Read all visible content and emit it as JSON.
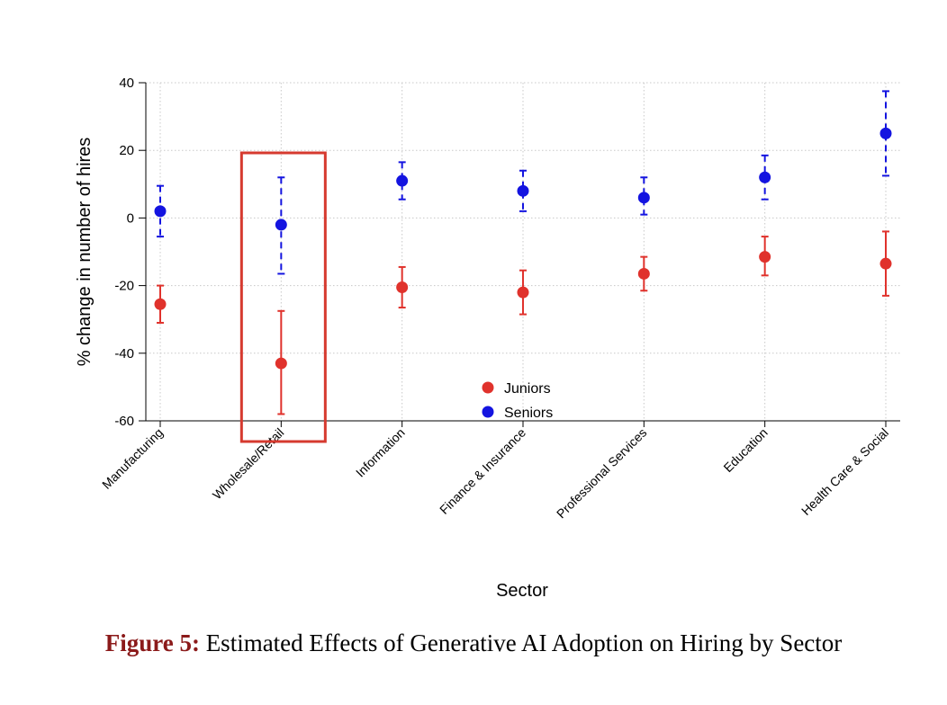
{
  "chart_data": {
    "type": "scatter",
    "subtype": "point-estimates-with-confidence-intervals",
    "xlabel": "Sector",
    "ylabel": "% change in number of hires",
    "ylim": [
      -60,
      40
    ],
    "yticks": [
      40,
      20,
      0,
      -20,
      -40,
      -60
    ],
    "categories": [
      "Manufacturing",
      "Wholesale/Retail",
      "Information",
      "Finance & Insurance",
      "Professional Services",
      "Education",
      "Health Care & Social"
    ],
    "series": [
      {
        "name": "Juniors",
        "color": "#e0322c",
        "values": [
          -25.5,
          -43,
          -20.5,
          -22,
          -16.5,
          -11.5,
          -13.5
        ],
        "ci_low": [
          -31,
          -58,
          -26.5,
          -28.5,
          -21.5,
          -17,
          -23
        ],
        "ci_high": [
          -20,
          -27.5,
          -14.5,
          -15.5,
          -11.5,
          -5.5,
          -4
        ]
      },
      {
        "name": "Seniors",
        "color": "#1414e0",
        "values": [
          2,
          -2,
          11,
          8,
          6,
          12,
          25
        ],
        "ci_low": [
          -5.5,
          -16.5,
          5.5,
          2,
          1,
          5.5,
          12.5
        ],
        "ci_high": [
          9.5,
          12,
          16.5,
          14,
          12,
          18.5,
          37.5
        ]
      }
    ],
    "grid": true,
    "legend_position": "center-bottom",
    "highlight_category": "Wholesale/Retail",
    "highlight_color": "#d63a2f"
  },
  "caption": {
    "label": "Figure 5:",
    "text": " Estimated Effects of Generative AI Adoption on Hiring by Sector"
  }
}
